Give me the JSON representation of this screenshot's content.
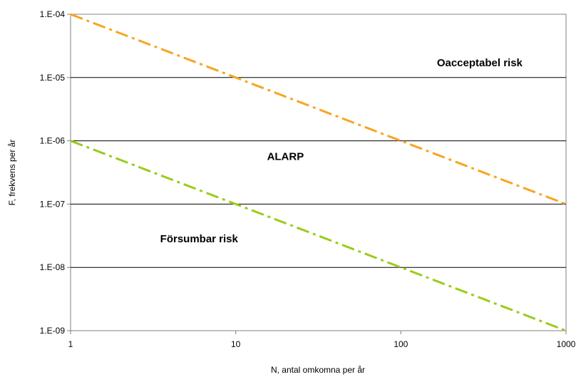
{
  "chart_data": {
    "type": "line",
    "title": "",
    "xlabel": "N, antal omkomna per år",
    "ylabel": "F, frekvens per år",
    "x_scale": "log",
    "y_scale": "log",
    "xlim": [
      1,
      1000
    ],
    "ylim": [
      1e-09,
      0.0001
    ],
    "grid": "horizontal",
    "legend": "none",
    "x_ticks": [
      {
        "value": 1,
        "label": "1"
      },
      {
        "value": 10,
        "label": "10"
      },
      {
        "value": 100,
        "label": "100"
      },
      {
        "value": 1000,
        "label": "1000"
      }
    ],
    "y_ticks": [
      {
        "value": 0.0001,
        "label": "1.E-04"
      },
      {
        "value": 1e-05,
        "label": "1.E-05"
      },
      {
        "value": 1e-06,
        "label": "1.E-06"
      },
      {
        "value": 1e-07,
        "label": "1.E-07"
      },
      {
        "value": 1e-08,
        "label": "1.E-08"
      },
      {
        "value": 1e-09,
        "label": "1.E-09"
      }
    ],
    "series": [
      {
        "color": "#F7A520",
        "style": "dash-dot",
        "x": [
          1,
          1000
        ],
        "y": [
          0.0001,
          1e-07
        ]
      },
      {
        "color": "#99CC1A",
        "style": "dash-dot",
        "x": [
          1,
          1000
        ],
        "y": [
          1e-06,
          1e-09
        ]
      }
    ],
    "annotations": [
      {
        "text": "Oacceptabel risk",
        "x": 300,
        "y": 1.5e-05
      },
      {
        "text": "ALARP",
        "x": 20,
        "y": 5e-07
      },
      {
        "text": "Försumbar risk",
        "x": 6,
        "y": 2.5e-08
      }
    ]
  }
}
